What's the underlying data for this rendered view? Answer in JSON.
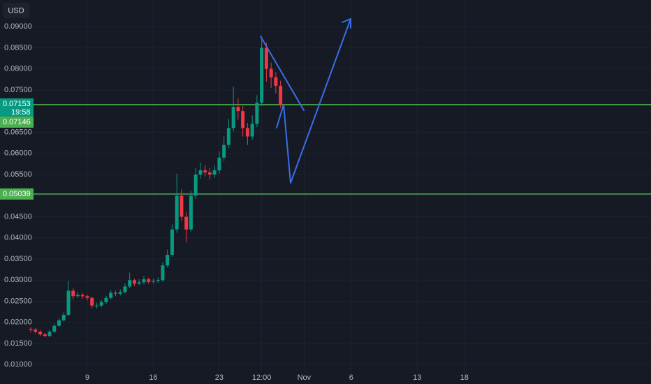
{
  "chart_data": {
    "type": "candlestick",
    "currency": "USD",
    "up_color": "#089981",
    "down_color": "#f23645",
    "grid": true,
    "xlim": [
      -0.26,
      68.8
    ],
    "ylim": [
      0.0084,
      0.0963
    ],
    "xticks": [
      9,
      16,
      23,
      {
        "value": 27.5,
        "label": "12:00"
      },
      {
        "value": 32,
        "label": "Nov"
      },
      {
        "value": 37,
        "label": "6"
      },
      {
        "value": 44,
        "label": "13"
      },
      {
        "value": 49,
        "label": "18"
      }
    ],
    "yticks": [
      {
        "value": 0.01,
        "label": "0.01000"
      },
      {
        "value": 0.015,
        "label": "0.01500"
      },
      {
        "value": 0.02,
        "label": "0.02000"
      },
      {
        "value": 0.025,
        "label": "0.02500"
      },
      {
        "value": 0.03,
        "label": "0.03000"
      },
      {
        "value": 0.035,
        "label": "0.03500"
      },
      {
        "value": 0.04,
        "label": "0.04000"
      },
      {
        "value": 0.045,
        "label": "0.04500"
      },
      {
        "value": 0.05,
        "label": "0.05000"
      },
      {
        "value": 0.055,
        "label": "0.05500"
      },
      {
        "value": 0.06,
        "label": "0.06000"
      },
      {
        "value": 0.065,
        "label": "0.06500"
      },
      {
        "value": 0.075,
        "label": "0.07500"
      },
      {
        "value": 0.08,
        "label": "0.08000"
      },
      {
        "value": 0.085,
        "label": "0.08500"
      },
      {
        "value": 0.09,
        "label": "0.09000"
      }
    ],
    "x": [
      3,
      3.5,
      4,
      4.5,
      5,
      5.5,
      6,
      6.5,
      7,
      7.5,
      8,
      8.5,
      9,
      9.5,
      10,
      10.5,
      11,
      11.5,
      12,
      12.5,
      13,
      13.5,
      14,
      14.5,
      15,
      15.5,
      16,
      16.5,
      17,
      17.5,
      18,
      18.5,
      19,
      19.5,
      20,
      20.5,
      21,
      21.5,
      22,
      22.5,
      23,
      23.5,
      24,
      24.5,
      25,
      25.5,
      26,
      26.5,
      27,
      27.5,
      28,
      28.5,
      29,
      29.5
    ],
    "open": [
      0.0185,
      0.0183,
      0.0178,
      0.0172,
      0.0168,
      0.0178,
      0.0192,
      0.0205,
      0.0218,
      0.0275,
      0.0262,
      0.0265,
      0.0262,
      0.0258,
      0.024,
      0.024,
      0.0248,
      0.0258,
      0.027,
      0.0268,
      0.0272,
      0.0285,
      0.03,
      0.0292,
      0.0295,
      0.0302,
      0.0296,
      0.0298,
      0.03,
      0.0335,
      0.036,
      0.042,
      0.05,
      0.045,
      0.042,
      0.05,
      0.055,
      0.056,
      0.0555,
      0.055,
      0.056,
      0.059,
      0.062,
      0.066,
      0.071,
      0.07,
      0.066,
      0.064,
      0.067,
      0.072,
      0.085,
      0.08,
      0.078,
      0.076
    ],
    "high": [
      0.0189,
      0.0187,
      0.0182,
      0.0175,
      0.0182,
      0.0197,
      0.021,
      0.0224,
      0.0298,
      0.0281,
      0.0272,
      0.027,
      0.0266,
      0.0261,
      0.0246,
      0.0253,
      0.0263,
      0.0276,
      0.0275,
      0.0278,
      0.0292,
      0.0318,
      0.0304,
      0.0302,
      0.031,
      0.0306,
      0.0303,
      0.0306,
      0.0342,
      0.0372,
      0.0432,
      0.0552,
      0.0515,
      0.0462,
      0.0512,
      0.0565,
      0.0578,
      0.0572,
      0.0566,
      0.0572,
      0.0605,
      0.064,
      0.0682,
      0.0758,
      0.073,
      0.0712,
      0.0672,
      0.069,
      0.0738,
      0.0875,
      0.0862,
      0.0815,
      0.0792,
      0.0772
    ],
    "low": [
      0.0177,
      0.0174,
      0.0168,
      0.0165,
      0.0165,
      0.0176,
      0.019,
      0.0202,
      0.0215,
      0.0255,
      0.0258,
      0.0256,
      0.0252,
      0.0234,
      0.0233,
      0.0236,
      0.0244,
      0.0254,
      0.0262,
      0.0264,
      0.0268,
      0.0281,
      0.0286,
      0.0288,
      0.029,
      0.0291,
      0.0292,
      0.0294,
      0.0296,
      0.033,
      0.0355,
      0.0412,
      0.044,
      0.039,
      0.0415,
      0.0492,
      0.054,
      0.0545,
      0.0538,
      0.0542,
      0.0552,
      0.0582,
      0.0612,
      0.0652,
      0.068,
      0.064,
      0.062,
      0.0632,
      0.0662,
      0.0712,
      0.077,
      0.0755,
      0.0742,
      0.0708
    ],
    "close": [
      0.0183,
      0.0178,
      0.0172,
      0.0168,
      0.0178,
      0.0192,
      0.0205,
      0.0218,
      0.0275,
      0.0262,
      0.0265,
      0.0262,
      0.0258,
      0.024,
      0.024,
      0.0248,
      0.0258,
      0.027,
      0.0268,
      0.0272,
      0.0285,
      0.03,
      0.0292,
      0.0295,
      0.0302,
      0.0296,
      0.0298,
      0.03,
      0.0335,
      0.036,
      0.042,
      0.05,
      0.045,
      0.042,
      0.05,
      0.055,
      0.056,
      0.0555,
      0.055,
      0.056,
      0.059,
      0.062,
      0.066,
      0.071,
      0.07,
      0.066,
      0.064,
      0.067,
      0.072,
      0.085,
      0.08,
      0.078,
      0.076,
      0.0715
    ],
    "last_price": 0.07153,
    "countdown": "19:58",
    "alert_price": 0.07146,
    "levels": [
      {
        "value": 0.07153,
        "color": "#4caf50"
      },
      {
        "value": 0.05039,
        "color": "#4caf50"
      }
    ]
  }
}
